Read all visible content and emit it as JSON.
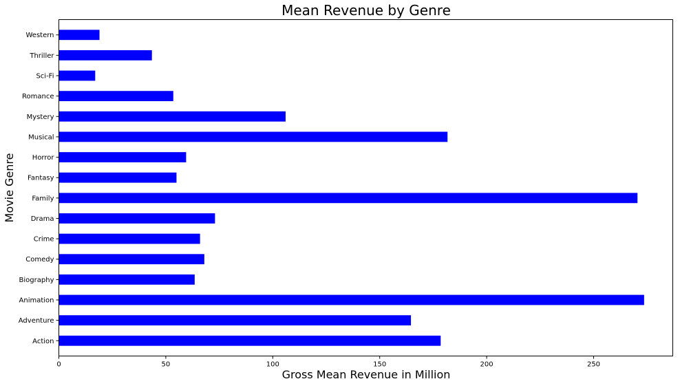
{
  "chart_data": {
    "type": "bar",
    "orientation": "horizontal",
    "title": "Mean Revenue by Genre",
    "xlabel": "Gross Mean Revenue in Million",
    "ylabel": "Movie Genre",
    "categories": [
      "Action",
      "Adventure",
      "Animation",
      "Biography",
      "Comedy",
      "Crime",
      "Drama",
      "Family",
      "Fantasy",
      "Horror",
      "Musical",
      "Mystery",
      "Romance",
      "Sci-Fi",
      "Thriller",
      "Western"
    ],
    "values": [
      178.5,
      164.6,
      273.6,
      63.5,
      68.0,
      66.0,
      73.0,
      270.5,
      55.0,
      59.5,
      181.7,
      106.0,
      53.5,
      17.0,
      43.5,
      19.0
    ],
    "xlim": [
      0,
      287
    ],
    "xticks": [
      0,
      50,
      100,
      150,
      200,
      250
    ],
    "grid": false,
    "legend": "none",
    "bar_color": "#0000ff"
  }
}
